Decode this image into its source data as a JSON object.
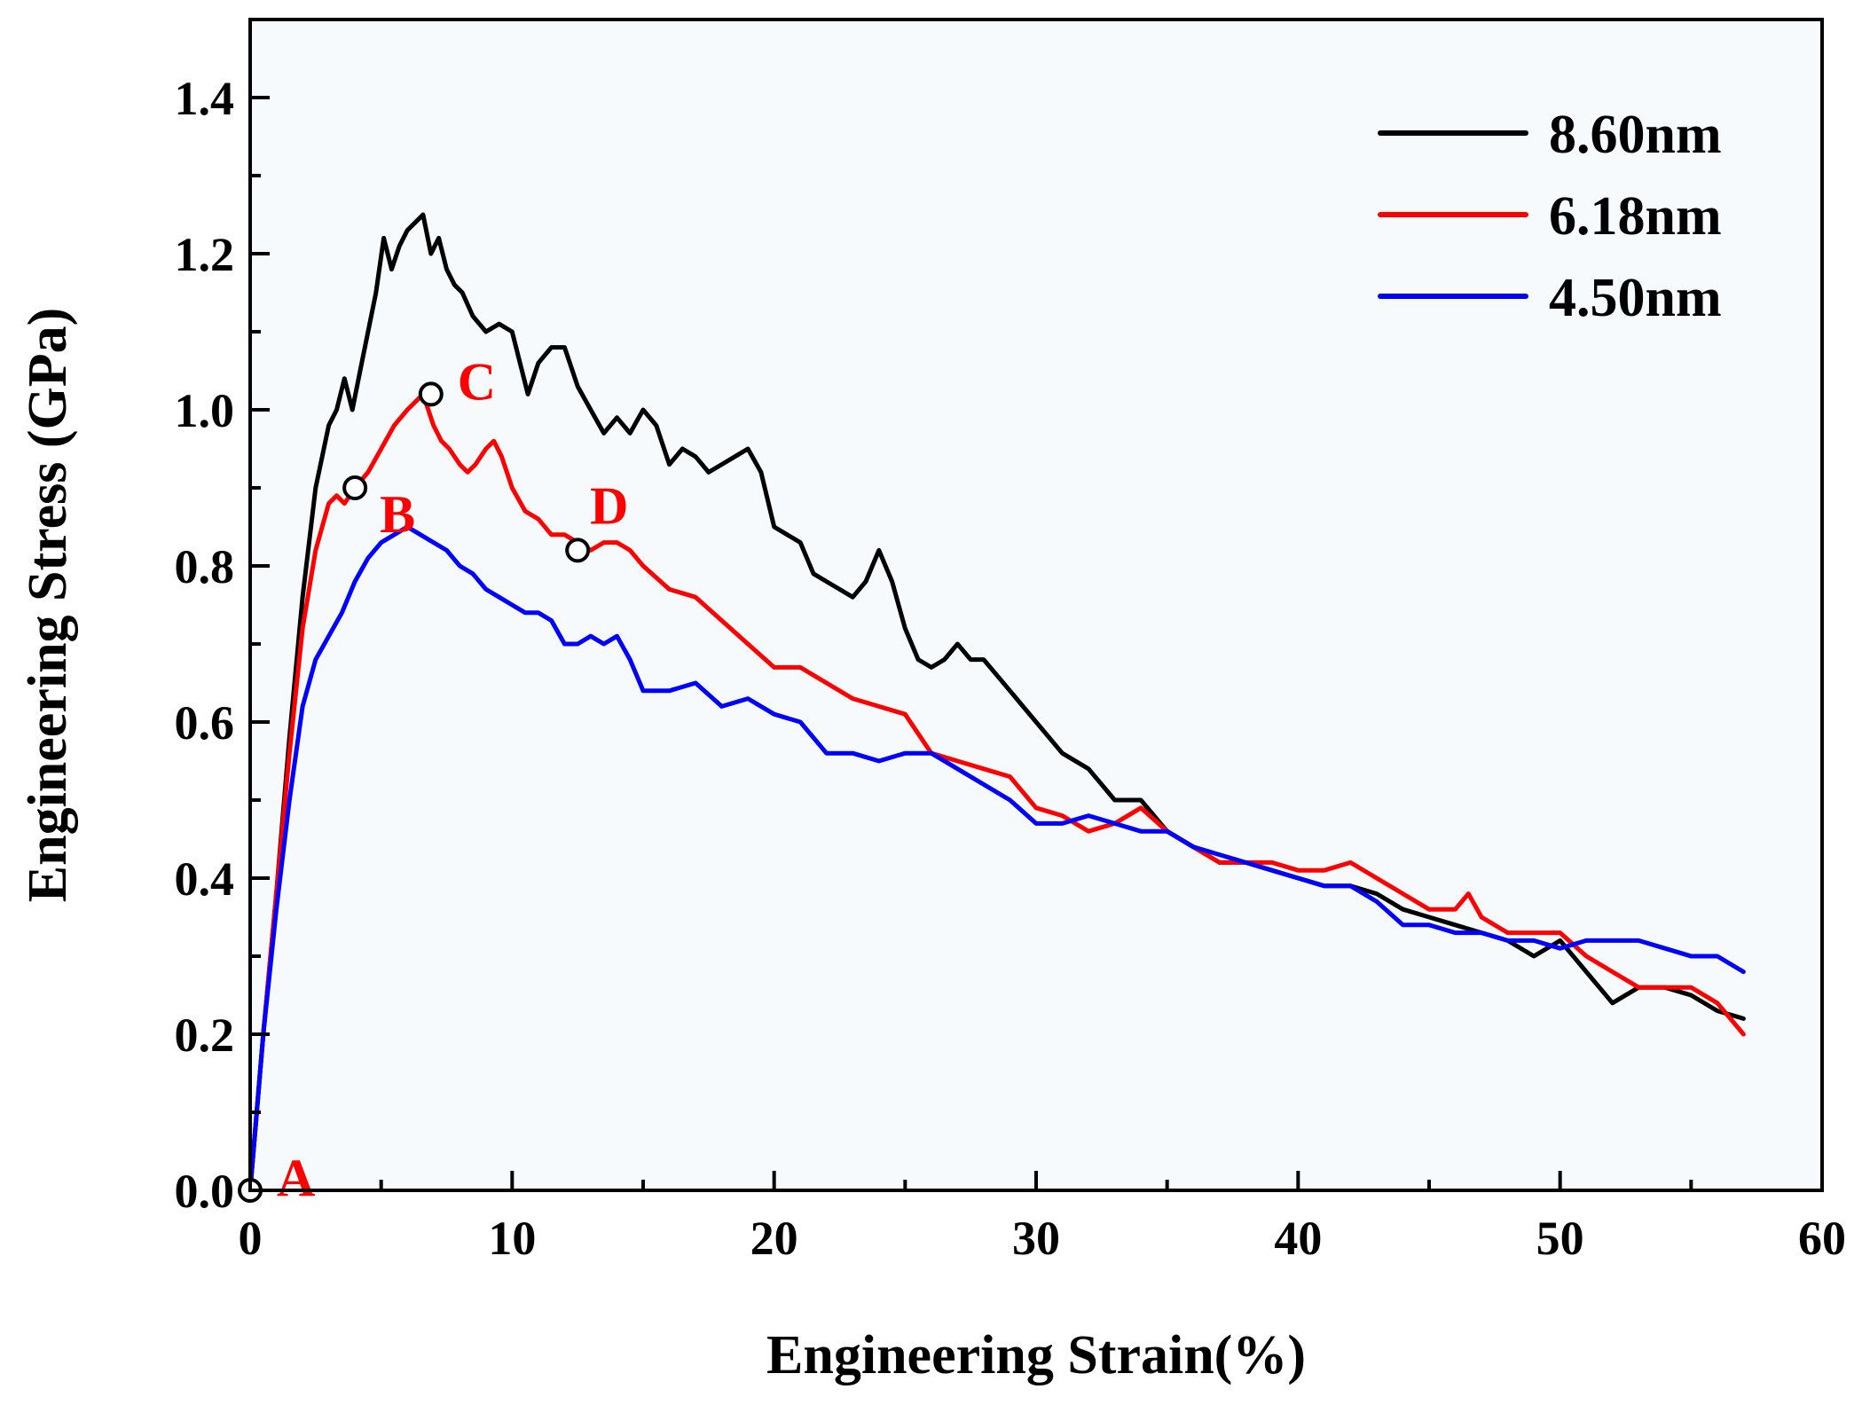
{
  "chart_data": {
    "type": "line",
    "xlabel": "Engineering Strain(%)",
    "ylabel": "Engineering Stress (GPa)",
    "xlim": [
      0,
      60
    ],
    "ylim": [
      0,
      1.5
    ],
    "xticks": [
      0,
      10,
      20,
      30,
      40,
      50,
      60
    ],
    "xtick_labels": [
      "0",
      "10",
      "20",
      "30",
      "40",
      "50",
      "60"
    ],
    "yticks": [
      0.0,
      0.2,
      0.4,
      0.6,
      0.8,
      1.0,
      1.2,
      1.4
    ],
    "ytick_labels": [
      "0.0",
      "0.2",
      "0.4",
      "0.6",
      "0.8",
      "1.0",
      "1.2",
      "1.4"
    ],
    "grid": false,
    "legend_position": "top-right",
    "series": [
      {
        "name": "8.60nm",
        "color": "#000000",
        "x": [
          0,
          0.5,
          1,
          1.5,
          2,
          2.5,
          3,
          3.3,
          3.6,
          3.9,
          4.2,
          4.5,
          4.8,
          5.1,
          5.4,
          5.7,
          6,
          6.3,
          6.6,
          6.9,
          7.2,
          7.5,
          7.8,
          8.1,
          8.5,
          9,
          9.5,
          10,
          10.3,
          10.6,
          11,
          11.5,
          12,
          12.5,
          13,
          13.5,
          14,
          14.5,
          15,
          15.5,
          16,
          16.5,
          17,
          17.5,
          18,
          18.5,
          19,
          19.5,
          20,
          20.5,
          21,
          21.5,
          22,
          22.5,
          23,
          23.5,
          24,
          24.5,
          25,
          25.5,
          26,
          26.5,
          27,
          27.5,
          28,
          28.5,
          29,
          29.5,
          30,
          31,
          32,
          33,
          34,
          35,
          36,
          37,
          38,
          39,
          40,
          41,
          42,
          43,
          44,
          45,
          46,
          47,
          48,
          49,
          50,
          51,
          52,
          53,
          54,
          55,
          56,
          57
        ],
        "y": [
          0,
          0.2,
          0.38,
          0.58,
          0.76,
          0.9,
          0.98,
          1.0,
          1.04,
          1.0,
          1.05,
          1.1,
          1.15,
          1.22,
          1.18,
          1.21,
          1.23,
          1.24,
          1.25,
          1.2,
          1.22,
          1.18,
          1.16,
          1.15,
          1.12,
          1.1,
          1.11,
          1.1,
          1.06,
          1.02,
          1.06,
          1.08,
          1.08,
          1.03,
          1.0,
          0.97,
          0.99,
          0.97,
          1.0,
          0.98,
          0.93,
          0.95,
          0.94,
          0.92,
          0.93,
          0.94,
          0.95,
          0.92,
          0.85,
          0.84,
          0.83,
          0.79,
          0.78,
          0.77,
          0.76,
          0.78,
          0.82,
          0.78,
          0.72,
          0.68,
          0.67,
          0.68,
          0.7,
          0.68,
          0.68,
          0.66,
          0.64,
          0.62,
          0.6,
          0.56,
          0.54,
          0.5,
          0.5,
          0.46,
          0.44,
          0.42,
          0.42,
          0.41,
          0.4,
          0.39,
          0.39,
          0.38,
          0.36,
          0.35,
          0.34,
          0.33,
          0.32,
          0.3,
          0.32,
          0.28,
          0.24,
          0.26,
          0.26,
          0.25,
          0.23,
          0.22
        ]
      },
      {
        "name": "6.18nm",
        "color": "#ff0000",
        "x": [
          0,
          0.5,
          1,
          1.5,
          2,
          2.5,
          3,
          3.3,
          3.6,
          4,
          4.5,
          5,
          5.5,
          6,
          6.3,
          6.6,
          7,
          7.3,
          7.6,
          8,
          8.3,
          8.6,
          9,
          9.3,
          9.6,
          10,
          10.5,
          11,
          11.5,
          12,
          12.5,
          13,
          13.5,
          14,
          14.5,
          15,
          16,
          17,
          18,
          19,
          20,
          21,
          22,
          23,
          24,
          25,
          26,
          27,
          28,
          29,
          30,
          31,
          32,
          33,
          34,
          35,
          36,
          37,
          38,
          39,
          40,
          41,
          42,
          43,
          44,
          45,
          46,
          46.5,
          47,
          48,
          49,
          50,
          51,
          52,
          53,
          54,
          55,
          56,
          57
        ],
        "y": [
          0,
          0.2,
          0.38,
          0.56,
          0.72,
          0.82,
          0.88,
          0.89,
          0.88,
          0.9,
          0.92,
          0.95,
          0.98,
          1.0,
          1.01,
          1.02,
          0.98,
          0.96,
          0.95,
          0.93,
          0.92,
          0.93,
          0.95,
          0.96,
          0.94,
          0.9,
          0.87,
          0.86,
          0.84,
          0.84,
          0.83,
          0.82,
          0.83,
          0.83,
          0.82,
          0.8,
          0.77,
          0.76,
          0.73,
          0.7,
          0.67,
          0.67,
          0.65,
          0.63,
          0.62,
          0.61,
          0.56,
          0.55,
          0.54,
          0.53,
          0.49,
          0.48,
          0.46,
          0.47,
          0.49,
          0.46,
          0.44,
          0.42,
          0.42,
          0.42,
          0.41,
          0.41,
          0.42,
          0.4,
          0.38,
          0.36,
          0.36,
          0.38,
          0.35,
          0.33,
          0.33,
          0.33,
          0.3,
          0.28,
          0.26,
          0.26,
          0.26,
          0.24,
          0.2
        ]
      },
      {
        "name": "4.50nm",
        "color": "#0000ff",
        "x": [
          0,
          0.5,
          1,
          1.5,
          2,
          2.5,
          3,
          3.5,
          4,
          4.5,
          5,
          5.5,
          6,
          6.5,
          7,
          7.5,
          8,
          8.5,
          9,
          9.5,
          10,
          10.5,
          11,
          11.5,
          12,
          12.5,
          13,
          13.5,
          14,
          14.5,
          15,
          16,
          17,
          18,
          19,
          20,
          21,
          22,
          23,
          24,
          25,
          26,
          27,
          28,
          29,
          30,
          31,
          32,
          33,
          34,
          35,
          36,
          37,
          38,
          39,
          40,
          41,
          42,
          43,
          44,
          45,
          46,
          47,
          48,
          49,
          50,
          51,
          52,
          53,
          54,
          55,
          56,
          57
        ],
        "y": [
          0,
          0.2,
          0.36,
          0.5,
          0.62,
          0.68,
          0.71,
          0.74,
          0.78,
          0.81,
          0.83,
          0.84,
          0.85,
          0.84,
          0.83,
          0.82,
          0.8,
          0.79,
          0.77,
          0.76,
          0.75,
          0.74,
          0.74,
          0.73,
          0.7,
          0.7,
          0.71,
          0.7,
          0.71,
          0.68,
          0.64,
          0.64,
          0.65,
          0.62,
          0.63,
          0.61,
          0.6,
          0.56,
          0.56,
          0.55,
          0.56,
          0.56,
          0.54,
          0.52,
          0.5,
          0.47,
          0.47,
          0.48,
          0.47,
          0.46,
          0.46,
          0.44,
          0.43,
          0.42,
          0.41,
          0.4,
          0.39,
          0.39,
          0.37,
          0.34,
          0.34,
          0.33,
          0.33,
          0.32,
          0.32,
          0.31,
          0.32,
          0.32,
          0.32,
          0.31,
          0.3,
          0.3,
          0.28
        ]
      }
    ],
    "annotations": [
      {
        "label": "A",
        "x": 0,
        "y": 0.0,
        "color": "#ff0000",
        "label_offset": "right"
      },
      {
        "label": "B",
        "x": 4.0,
        "y": 0.9,
        "color": "#ff0000",
        "label_offset": "below-right"
      },
      {
        "label": "C",
        "x": 6.9,
        "y": 1.02,
        "color": "#ff0000",
        "label_offset": "right"
      },
      {
        "label": "D",
        "x": 12.5,
        "y": 0.82,
        "color": "#ff0000",
        "label_offset": "above-right"
      }
    ]
  }
}
